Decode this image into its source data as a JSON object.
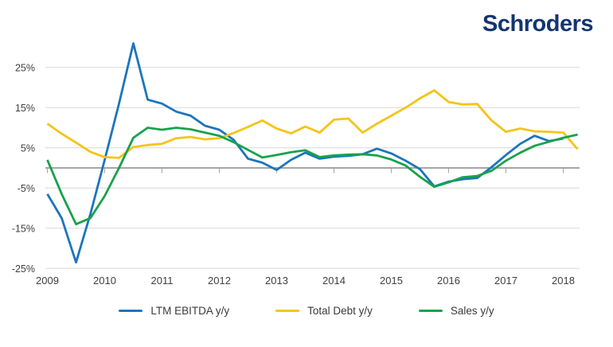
{
  "logo": {
    "text": "Schroders",
    "color": "#14356f"
  },
  "axis": {
    "text_color": "#404040",
    "grid_color": "#d8d8d8",
    "zero_line_color": "#a6a6a6"
  },
  "legend": {
    "items": [
      {
        "label": "LTM EBITDA y/y"
      },
      {
        "label": "Total Debt y/y"
      },
      {
        "label": "Sales y/y"
      }
    ]
  },
  "chart_data": {
    "type": "line",
    "title": "",
    "xlabel": "",
    "ylabel": "",
    "x_unit": "quarterly",
    "x_start": "2009Q1",
    "x_end": "2018Q2",
    "year_ticks": [
      2009,
      2010,
      2011,
      2012,
      2013,
      2014,
      2015,
      2016,
      2017,
      2018
    ],
    "y_ticks": [
      25,
      15,
      5,
      -5,
      -15,
      -25
    ],
    "y_tick_suffix": "%",
    "ylim": [
      -27,
      32
    ],
    "grid": "horizontal",
    "legend_position": "bottom",
    "series": [
      {
        "name": "LTM EBITDA y/y",
        "color": "#1c75bc",
        "values": [
          -6.5,
          -12.5,
          -23.5,
          -11.5,
          2,
          16,
          31,
          17,
          16,
          14,
          13,
          10.5,
          9.5,
          7,
          2.3,
          1.3,
          -0.5,
          2,
          3.8,
          2.3,
          2.8,
          3,
          3.4,
          4.8,
          3.6,
          1.8,
          -0.3,
          -4.6,
          -3.4,
          -2.8,
          -2.5,
          0.2,
          3.2,
          6,
          8,
          6.7,
          7.3,
          null
        ]
      },
      {
        "name": "Total Debt y/y",
        "color": "#f5c418",
        "values": [
          11,
          8.5,
          6.3,
          4,
          2.7,
          2.5,
          5.2,
          5.7,
          6,
          7.4,
          7.7,
          7.1,
          7.4,
          8.7,
          10.2,
          11.8,
          9.8,
          8.6,
          10.3,
          8.8,
          12,
          12.3,
          8.8,
          11,
          13,
          15,
          17.3,
          19.3,
          16.4,
          15.8,
          15.9,
          11.8,
          9,
          9.8,
          9.1,
          9,
          8.8,
          4.7
        ]
      },
      {
        "name": "Sales y/y",
        "color": "#18a24c",
        "values": [
          2,
          -6.5,
          -14,
          -12.5,
          -7,
          0,
          7.5,
          10,
          9.5,
          10,
          9.6,
          8.8,
          8,
          6.4,
          4.5,
          2.6,
          3.2,
          3.9,
          4.4,
          2.7,
          3.1,
          3.3,
          3.4,
          3.1,
          2.1,
          0.6,
          -2.2,
          -4.7,
          -3.6,
          -2.3,
          -2,
          -0.7,
          1.8,
          3.8,
          5.5,
          6.5,
          7.5,
          8.3
        ]
      }
    ]
  }
}
